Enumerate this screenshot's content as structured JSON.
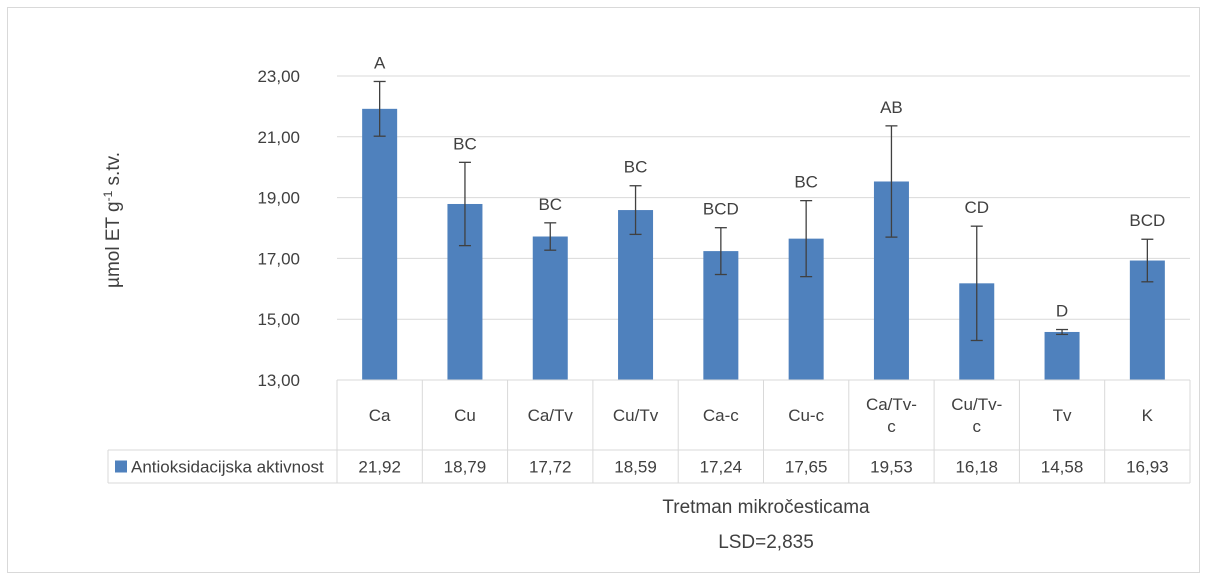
{
  "chart_data": {
    "type": "bar",
    "categories": [
      [
        "Ca"
      ],
      [
        "Cu"
      ],
      [
        "Ca/Tv"
      ],
      [
        "Cu/Tv"
      ],
      [
        "Ca-c"
      ],
      [
        "Cu-c"
      ],
      [
        "Ca/Tv-",
        "c"
      ],
      [
        "Cu/Tv-",
        "c"
      ],
      [
        "Tv"
      ],
      [
        "K"
      ]
    ],
    "series": [
      {
        "name": "Antioksidacijska aktivnost",
        "values": [
          21.92,
          18.79,
          17.72,
          18.59,
          17.24,
          17.65,
          19.53,
          16.18,
          14.58,
          16.93
        ],
        "value_labels": [
          "21,92",
          "18,79",
          "17,72",
          "18,59",
          "17,24",
          "17,65",
          "19,53",
          "16,18",
          "14,58",
          "16,93"
        ],
        "error": [
          0.9,
          1.37,
          0.45,
          0.8,
          0.77,
          1.25,
          1.83,
          1.88,
          0.08,
          0.7
        ],
        "letters": [
          "A",
          "BC",
          "BC",
          "BC",
          "BCD",
          "BC",
          "AB",
          "CD",
          "D",
          "BCD"
        ],
        "color": "#4f81bd"
      }
    ],
    "ylim": [
      13,
      23
    ],
    "yticks": [
      "13,00",
      "15,00",
      "17,00",
      "19,00",
      "21,00",
      "23,00"
    ],
    "ytick_values": [
      13,
      15,
      17,
      19,
      21,
      23
    ],
    "ylabel": "µmol ET g-1 s.tv.",
    "ylabel_parts": {
      "main": "µmol ET g",
      "sup": "-1",
      "tail": " s.tv."
    },
    "xlabel": "Tretman mikročesticama",
    "note": "LSD=2,835",
    "grid": true,
    "data_table": true
  },
  "colors": {
    "bar": "#4f81bd",
    "grid": "#d9d9d9",
    "text": "#404040",
    "error": "#404040"
  }
}
